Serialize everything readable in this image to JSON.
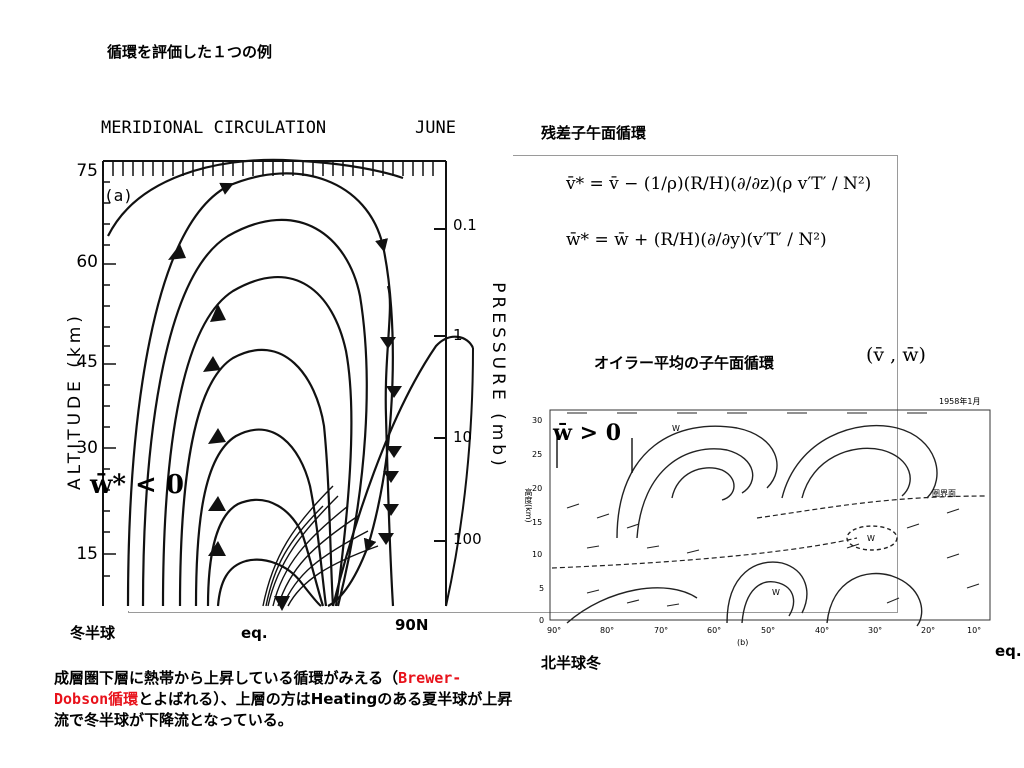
{
  "slide": {
    "title": "循環を評価した１つの例",
    "residual_label": "残差子午面循環",
    "euler_label": "オイラー平均の子午面循環",
    "euler_vars": "(v̄ , w̄)",
    "winter_hemisphere": "冬半球",
    "eq_left": "eq.",
    "north_90": "90N",
    "north_winter": "北半球冬",
    "eq_right": "eq.",
    "w_star_neg": "w̄* < 0",
    "w_bar_pos": "w̄ > 0",
    "equations": {
      "v_star": "v̄* = v̄ − (1/ρ)(R/H)(∂/∂z)(ρ v′T′ / N²)",
      "w_star": "w̄* = w̄ + (R/H)(∂/∂y)(v′T′ / N²)"
    },
    "description": {
      "part1": "成層圏下層に熱帯から上昇している循環がみえる（",
      "highlight": "Brewer-Dobson循環",
      "part2": "とよばれる）、上層の方はHeatingのある夏半球が上昇流で冬半球が下降流となっている。"
    }
  },
  "left_figure": {
    "title": "MERIDIONAL CIRCULATION",
    "month": "JUNE",
    "panel": "(a)",
    "y_axis_label": "ALTITUDE (km)",
    "y_ticks": [
      "75",
      "60",
      "45",
      "30",
      "15"
    ],
    "right_axis_label": "PRESSURE (mb)",
    "pressure_ticks": [
      "0.1",
      "1",
      "10",
      "100"
    ]
  },
  "right_figure": {
    "year_label": "1958年1月",
    "tropopause_label": "圏界面",
    "y_label": "高度(km)",
    "y_ticks": [
      "30",
      "25",
      "20",
      "15",
      "10",
      "5",
      "0"
    ],
    "x_ticks": [
      "90°",
      "80°",
      "70°",
      "60°",
      "50°",
      "40°",
      "30°",
      "20°",
      "10°"
    ],
    "panel": "(b)",
    "w_marks": [
      "W",
      "W",
      "W"
    ]
  },
  "colors": {
    "highlight": "#e8121b",
    "frame": "#9a9a9a"
  }
}
